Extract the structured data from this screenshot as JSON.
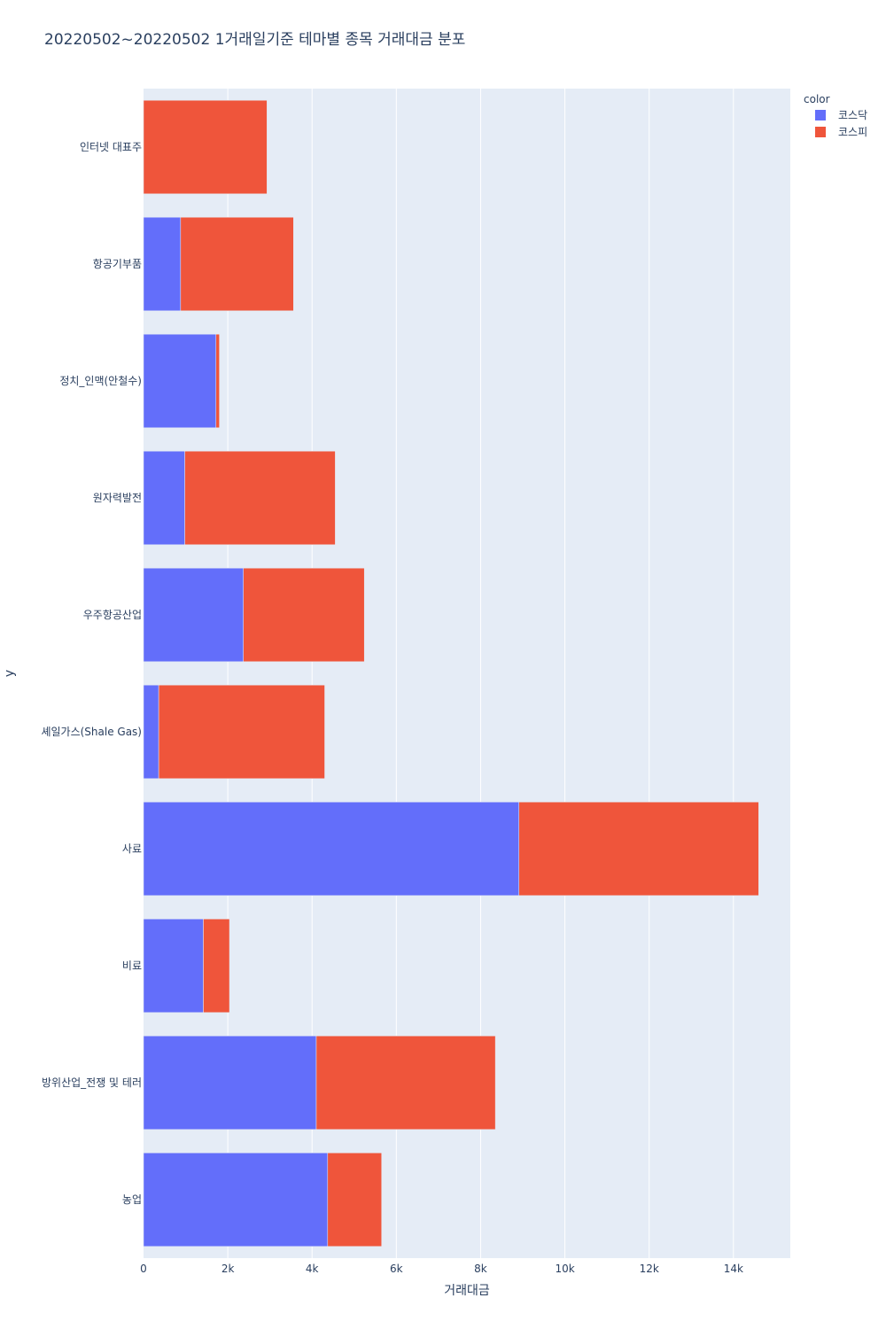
{
  "chart_data": {
    "type": "bar",
    "orientation": "horizontal",
    "barmode": "stack",
    "title": "20220502~20220502 1거래일기준 테마별 종목 거래대금 분포",
    "xlabel": "거래대금",
    "ylabel": "y",
    "xlim": [
      0,
      15350
    ],
    "xticks": [
      0,
      2000,
      4000,
      6000,
      8000,
      10000,
      12000,
      14000
    ],
    "xtick_labels": [
      "0",
      "2k",
      "4k",
      "6k",
      "8k",
      "10k",
      "12k",
      "14k"
    ],
    "categories": [
      "인터넷 대표주",
      "항공기부품",
      "정치_인맥(안철수)",
      "원자력발전",
      "우주항공산업",
      "셰일가스(Shale Gas)",
      "사료",
      "비료",
      "방위산업_전쟁 및 테러",
      "농업"
    ],
    "series": [
      {
        "name": "코스닥",
        "color": "#636efa",
        "values": [
          0,
          880,
          1720,
          980,
          2370,
          360,
          8910,
          1420,
          4100,
          4370
        ]
      },
      {
        "name": "코스피",
        "color": "#ef553b",
        "values": [
          2930,
          2680,
          80,
          3570,
          2870,
          3940,
          5690,
          620,
          4250,
          1280
        ]
      }
    ],
    "legend": {
      "title": "color",
      "position": "top-right"
    },
    "grid": true
  }
}
